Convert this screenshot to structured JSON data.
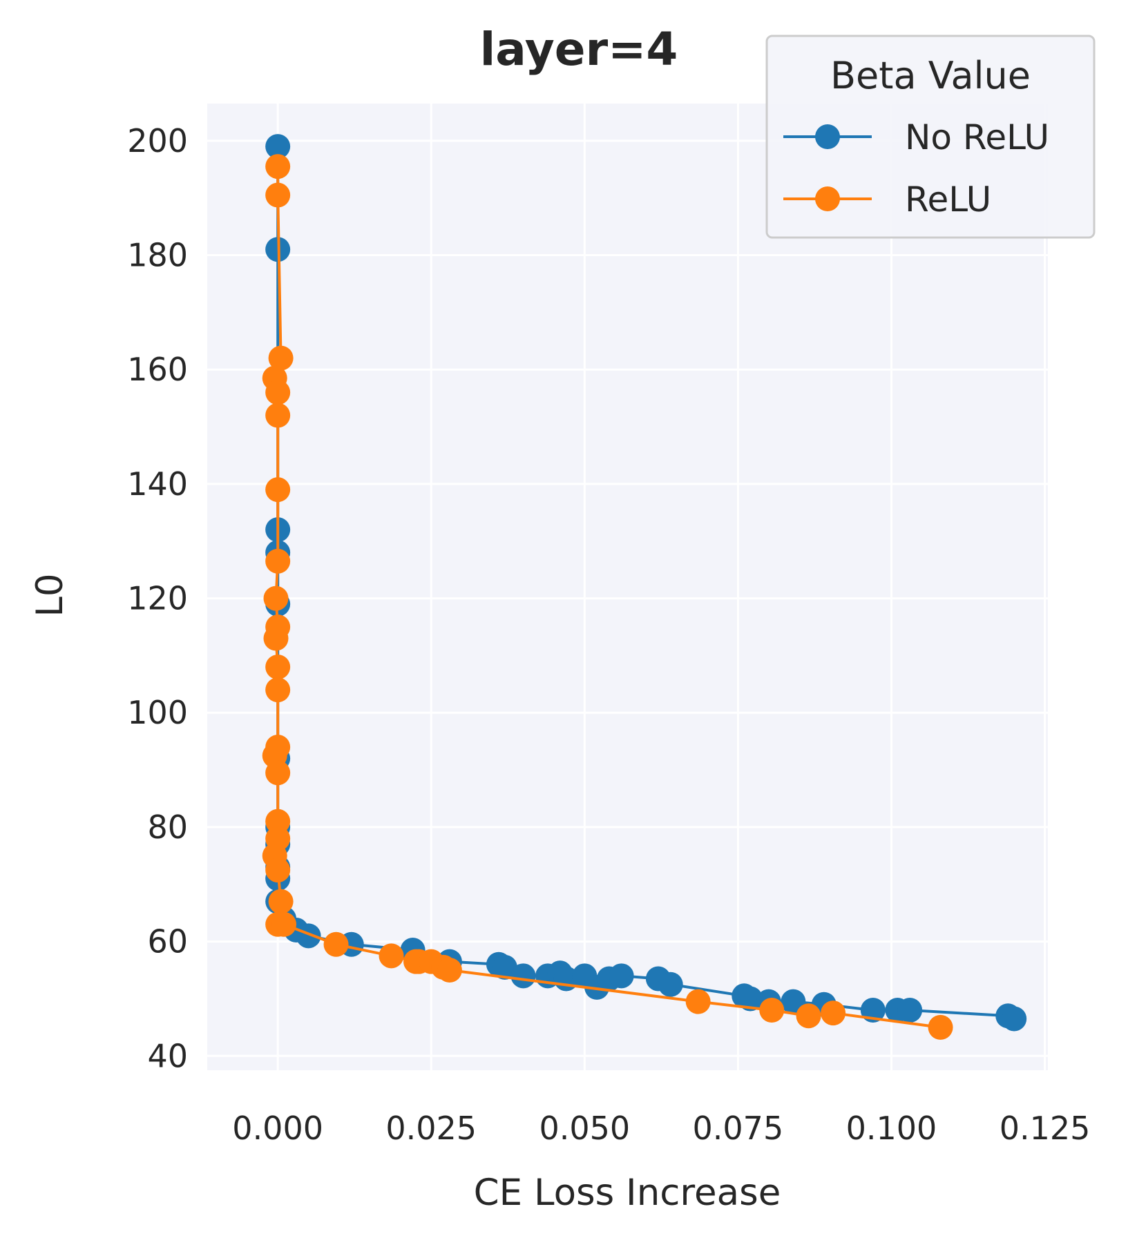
{
  "chart_data": {
    "type": "line",
    "title": "layer=4",
    "xlabel": "CE Loss Increase",
    "ylabel": "L0",
    "xlim": [
      -0.0115,
      0.1255
    ],
    "ylim": [
      37.5,
      206.5
    ],
    "xticks": [
      0.0,
      0.025,
      0.05,
      0.075,
      0.1,
      0.125
    ],
    "xtick_labels": [
      "0.000",
      "0.025",
      "0.050",
      "0.075",
      "0.100",
      "0.125"
    ],
    "yticks": [
      40,
      60,
      80,
      100,
      120,
      140,
      160,
      180,
      200
    ],
    "ytick_labels": [
      "40",
      "60",
      "80",
      "100",
      "120",
      "140",
      "160",
      "180",
      "200"
    ],
    "grid": true,
    "legend": {
      "title": "Beta Value",
      "placement": "top-right"
    },
    "series": [
      {
        "name": "No ReLU",
        "color": "#1f77b4",
        "points": [
          [
            0.0,
            199
          ],
          [
            0.0,
            181
          ],
          [
            0.0,
            132
          ],
          [
            0.0,
            128
          ],
          [
            0.0,
            119
          ],
          [
            0.0,
            92
          ],
          [
            0.0,
            80
          ],
          [
            0.0,
            77
          ],
          [
            0.0,
            73
          ],
          [
            0.0,
            71
          ],
          [
            0.0,
            67
          ],
          [
            0.001,
            64
          ],
          [
            0.003,
            62
          ],
          [
            0.005,
            61
          ],
          [
            0.012,
            59.5
          ],
          [
            0.022,
            58.5
          ],
          [
            0.028,
            56.5
          ],
          [
            0.036,
            56
          ],
          [
            0.037,
            55.5
          ],
          [
            0.04,
            54
          ],
          [
            0.044,
            54
          ],
          [
            0.046,
            54.5
          ],
          [
            0.047,
            53.5
          ],
          [
            0.05,
            54
          ],
          [
            0.052,
            52
          ],
          [
            0.054,
            53.5
          ],
          [
            0.056,
            54
          ],
          [
            0.062,
            53.5
          ],
          [
            0.064,
            52.5
          ],
          [
            0.076,
            50.5
          ],
          [
            0.077,
            50
          ],
          [
            0.08,
            49.5
          ],
          [
            0.084,
            49.5
          ],
          [
            0.089,
            49
          ],
          [
            0.097,
            48
          ],
          [
            0.101,
            48
          ],
          [
            0.103,
            48
          ],
          [
            0.119,
            47
          ],
          [
            0.12,
            46.5
          ]
        ]
      },
      {
        "name": "ReLU",
        "color": "#ff7f0e",
        "points": [
          [
            0.0,
            195.5
          ],
          [
            0.0,
            190.5
          ],
          [
            0.0005,
            162
          ],
          [
            -0.0005,
            158.5
          ],
          [
            0.0,
            156
          ],
          [
            0.0,
            152
          ],
          [
            0.0,
            139
          ],
          [
            0.0,
            126.5
          ],
          [
            -0.0003,
            120
          ],
          [
            0.0,
            115
          ],
          [
            -0.0003,
            113
          ],
          [
            0.0,
            108
          ],
          [
            0.0,
            104
          ],
          [
            0.0,
            94
          ],
          [
            -0.0005,
            92.5
          ],
          [
            0.0,
            89.5
          ],
          [
            0.0,
            81
          ],
          [
            0.0,
            78
          ],
          [
            -0.0005,
            75
          ],
          [
            0.0,
            72.5
          ],
          [
            0.0005,
            67
          ],
          [
            0.0,
            63
          ],
          [
            0.001,
            63
          ],
          [
            0.0095,
            59.5
          ],
          [
            0.0185,
            57.5
          ],
          [
            0.0225,
            56.5
          ],
          [
            0.023,
            56.5
          ],
          [
            0.025,
            56.5
          ],
          [
            0.027,
            55.5
          ],
          [
            0.028,
            55
          ],
          [
            0.0685,
            49.5
          ],
          [
            0.0805,
            48
          ],
          [
            0.0865,
            47
          ],
          [
            0.0905,
            47.5
          ],
          [
            0.108,
            45
          ]
        ]
      }
    ]
  }
}
